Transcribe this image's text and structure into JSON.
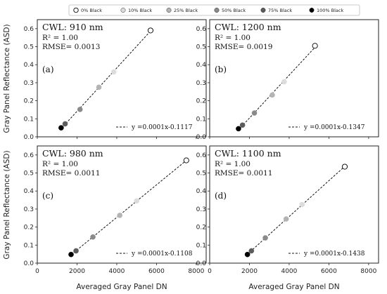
{
  "chart_data": {
    "type": "scatter",
    "xlabel": "Averaged Gray Panel DN",
    "ylabel": "Gray Panel Reflectance (ASD)",
    "xlim": [
      0,
      8500
    ],
    "ylim": [
      0,
      0.65
    ],
    "x_ticks": [
      "0",
      "2000",
      "4000",
      "6000",
      "8000"
    ],
    "y_ticks": [
      "0.0",
      "0.1",
      "0.2",
      "0.3",
      "0.4",
      "0.5",
      "0.6"
    ],
    "legend_position": "top",
    "legend": [
      {
        "label": "0% Black",
        "color": "#ffffff"
      },
      {
        "label": "10% Black",
        "color": "#dcdcdc"
      },
      {
        "label": "25% Black",
        "color": "#b4b4b4"
      },
      {
        "label": "50% Black",
        "color": "#8a8a8a"
      },
      {
        "label": "75% Black",
        "color": "#5c5c5c"
      },
      {
        "label": "100% Black",
        "color": "#000000"
      }
    ],
    "panels": [
      {
        "cwl": "CWL: 910 nm",
        "r2": "R² = 1.00",
        "rmse": "RMSE= 0.0013",
        "letter": "(a)",
        "fit": "y =0.0001x-0.1117",
        "points": [
          [
            5700,
            0.59
          ],
          [
            3850,
            0.36
          ],
          [
            3100,
            0.275
          ],
          [
            2150,
            0.152
          ],
          [
            1400,
            0.072
          ],
          [
            1200,
            0.05
          ]
        ]
      },
      {
        "cwl": "CWL: 1200 nm",
        "r2": "R² = 1.00",
        "rmse": "RMSE= 0.0019",
        "letter": "(b)",
        "fit": "y =0.0001x-0.1347",
        "points": [
          [
            5300,
            0.505
          ],
          [
            3750,
            0.305
          ],
          [
            3150,
            0.232
          ],
          [
            2250,
            0.132
          ],
          [
            1650,
            0.065
          ],
          [
            1450,
            0.045
          ]
        ]
      },
      {
        "cwl": "CWL: 980 nm",
        "r2": "R² = 1.00",
        "rmse": "RMSE= 0.0011",
        "letter": "(c)",
        "fit": "y =0.0001x-0.1108",
        "points": [
          [
            7500,
            0.57
          ],
          [
            5000,
            0.345
          ],
          [
            4150,
            0.265
          ],
          [
            2800,
            0.145
          ],
          [
            1950,
            0.068
          ],
          [
            1700,
            0.048
          ]
        ]
      },
      {
        "cwl": "CWL: 1100 nm",
        "r2": "R² = 1.00",
        "rmse": "RMSE= 0.0011",
        "letter": "(d)",
        "fit": "y =0.0001x-0.1438",
        "points": [
          [
            6800,
            0.535
          ],
          [
            4650,
            0.325
          ],
          [
            3850,
            0.245
          ],
          [
            2800,
            0.14
          ],
          [
            2100,
            0.068
          ],
          [
            1900,
            0.048
          ]
        ]
      }
    ]
  }
}
